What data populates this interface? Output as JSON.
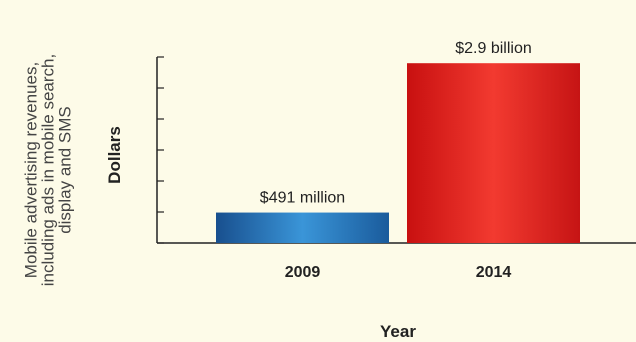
{
  "chart_data": {
    "type": "bar",
    "categories": [
      "2009",
      "2014"
    ],
    "values": [
      0.491,
      2.9
    ],
    "data_labels": [
      "$491 million",
      "$2.9 billion"
    ],
    "bar_colors": [
      "#1f6fb0",
      "#d91818"
    ],
    "side_caption": "Mobile advertising revenues, including ads in mobile search, display and SMS",
    "ylabel": "Dollars",
    "xlabel": "Year",
    "ylim": [
      0,
      3.0
    ],
    "grid": false
  }
}
